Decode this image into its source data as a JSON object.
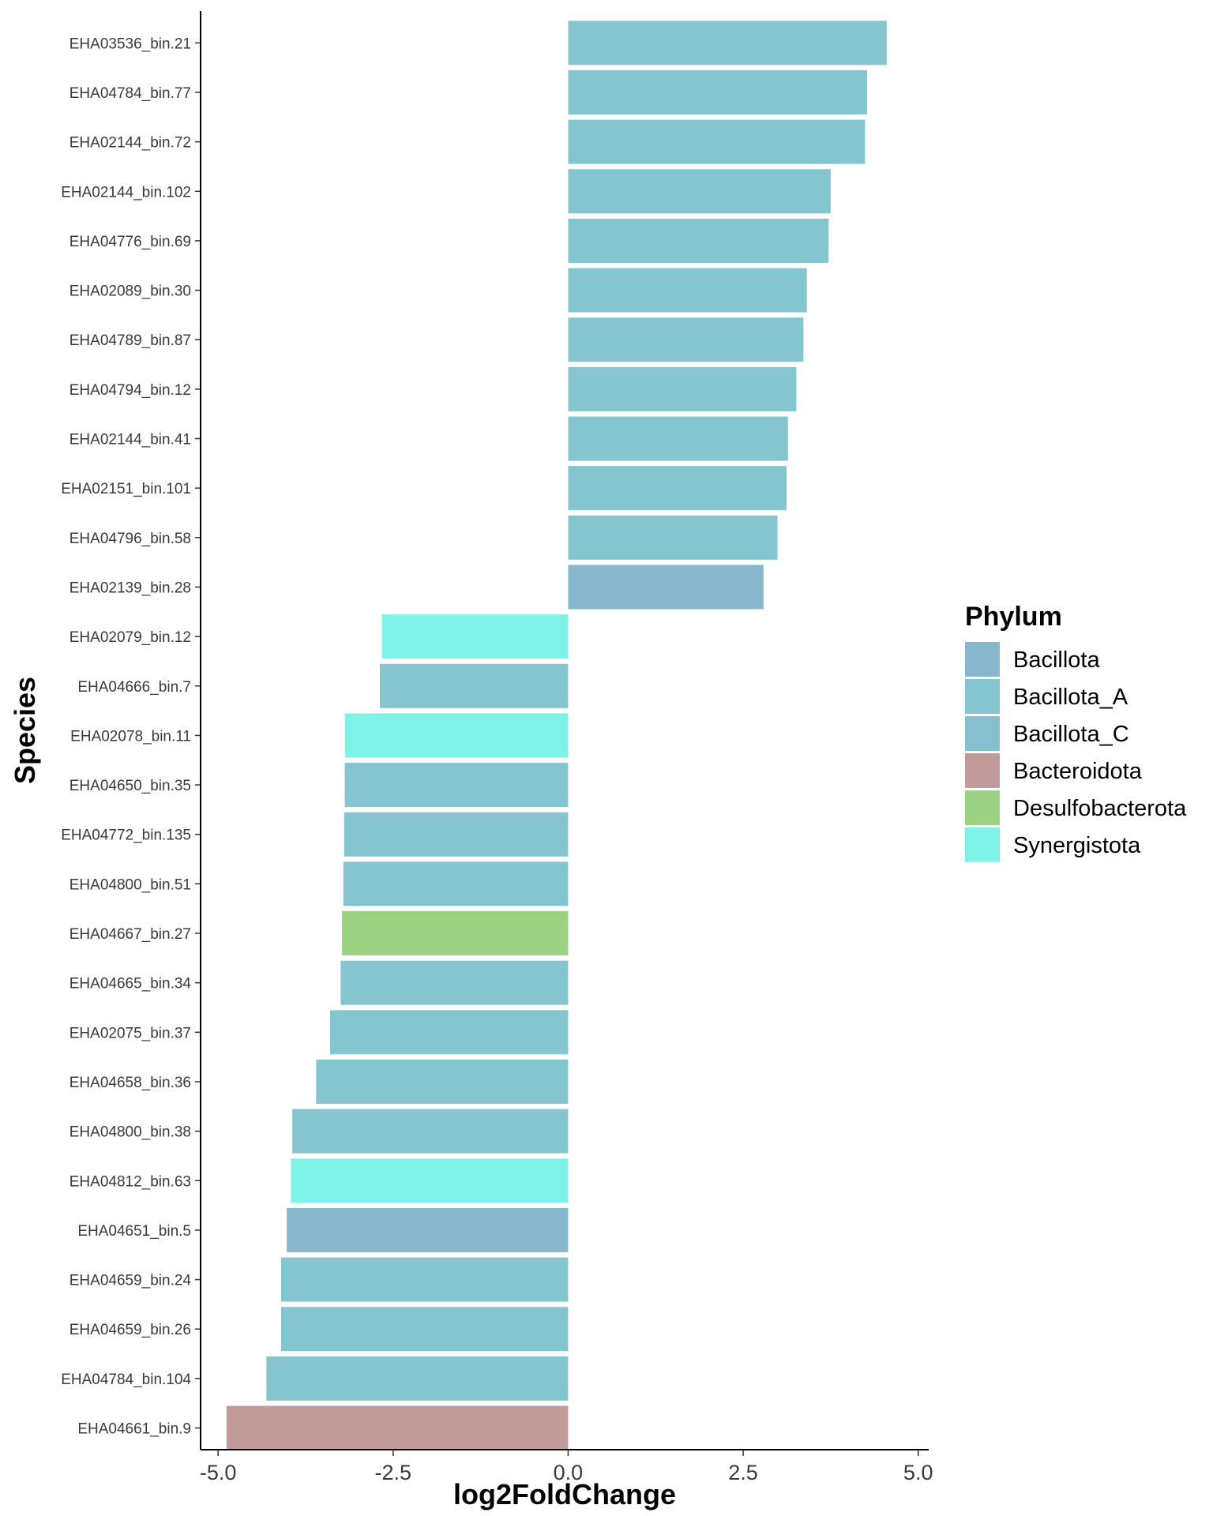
{
  "chart_data": {
    "type": "bar",
    "orientation": "horizontal",
    "xlabel": "log2FoldChange",
    "ylabel": "Species",
    "xlim": [
      -5.25,
      5.15
    ],
    "xticks": [
      -5.0,
      -2.5,
      0.0,
      2.5,
      5.0
    ],
    "xtick_labels": [
      "-5.0",
      "-2.5",
      "0.0",
      "2.5",
      "5.0"
    ],
    "grid": false,
    "legend": {
      "title": "Phylum",
      "placement": "right",
      "entries": [
        {
          "name": "Bacillota",
          "color": "#86b7cc"
        },
        {
          "name": "Bacillota_A",
          "color": "#85c5d0"
        },
        {
          "name": "Bacillota_C",
          "color": "#86bfd0"
        },
        {
          "name": "Bacteroidota",
          "color": "#c09b9a"
        },
        {
          "name": "Desulfobacterota",
          "color": "#9cd283"
        },
        {
          "name": "Synergistota",
          "color": "#80f3e8"
        }
      ]
    },
    "bars": [
      {
        "category": "EHA03536_bin.21",
        "value": 4.55,
        "phylum": "Bacillota_A"
      },
      {
        "category": "EHA04784_bin.77",
        "value": 4.27,
        "phylum": "Bacillota_A"
      },
      {
        "category": "EHA02144_bin.72",
        "value": 4.24,
        "phylum": "Bacillota_A"
      },
      {
        "category": "EHA02144_bin.102",
        "value": 3.75,
        "phylum": "Bacillota_A"
      },
      {
        "category": "EHA04776_bin.69",
        "value": 3.72,
        "phylum": "Bacillota_A"
      },
      {
        "category": "EHA02089_bin.30",
        "value": 3.41,
        "phylum": "Bacillota_A"
      },
      {
        "category": "EHA04789_bin.87",
        "value": 3.36,
        "phylum": "Bacillota_A"
      },
      {
        "category": "EHA04794_bin.12",
        "value": 3.26,
        "phylum": "Bacillota_A"
      },
      {
        "category": "EHA02144_bin.41",
        "value": 3.14,
        "phylum": "Bacillota_A"
      },
      {
        "category": "EHA02151_bin.101",
        "value": 3.12,
        "phylum": "Bacillota_A"
      },
      {
        "category": "EHA04796_bin.58",
        "value": 2.99,
        "phylum": "Bacillota_A"
      },
      {
        "category": "EHA02139_bin.28",
        "value": 2.79,
        "phylum": "Bacillota"
      },
      {
        "category": "EHA02079_bin.12",
        "value": -2.66,
        "phylum": "Synergistota"
      },
      {
        "category": "EHA04666_bin.7",
        "value": -2.69,
        "phylum": "Bacillota_A"
      },
      {
        "category": "EHA02078_bin.11",
        "value": -3.19,
        "phylum": "Synergistota"
      },
      {
        "category": "EHA04650_bin.35",
        "value": -3.19,
        "phylum": "Bacillota_A"
      },
      {
        "category": "EHA04772_bin.135",
        "value": -3.2,
        "phylum": "Bacillota_A"
      },
      {
        "category": "EHA04800_bin.51",
        "value": -3.21,
        "phylum": "Bacillota_A"
      },
      {
        "category": "EHA04667_bin.27",
        "value": -3.23,
        "phylum": "Desulfobacterota"
      },
      {
        "category": "EHA04665_bin.34",
        "value": -3.25,
        "phylum": "Bacillota_A"
      },
      {
        "category": "EHA02075_bin.37",
        "value": -3.4,
        "phylum": "Bacillota_A"
      },
      {
        "category": "EHA04658_bin.36",
        "value": -3.6,
        "phylum": "Bacillota_A"
      },
      {
        "category": "EHA04800_bin.38",
        "value": -3.94,
        "phylum": "Bacillota_A"
      },
      {
        "category": "EHA04812_bin.63",
        "value": -3.96,
        "phylum": "Synergistota"
      },
      {
        "category": "EHA04651_bin.5",
        "value": -4.02,
        "phylum": "Bacillota"
      },
      {
        "category": "EHA04659_bin.24",
        "value": -4.1,
        "phylum": "Bacillota_A"
      },
      {
        "category": "EHA04659_bin.26",
        "value": -4.1,
        "phylum": "Bacillota_A"
      },
      {
        "category": "EHA04784_bin.104",
        "value": -4.31,
        "phylum": "Bacillota_A"
      },
      {
        "category": "EHA04661_bin.9",
        "value": -4.88,
        "phylum": "Bacteroidota"
      }
    ]
  }
}
